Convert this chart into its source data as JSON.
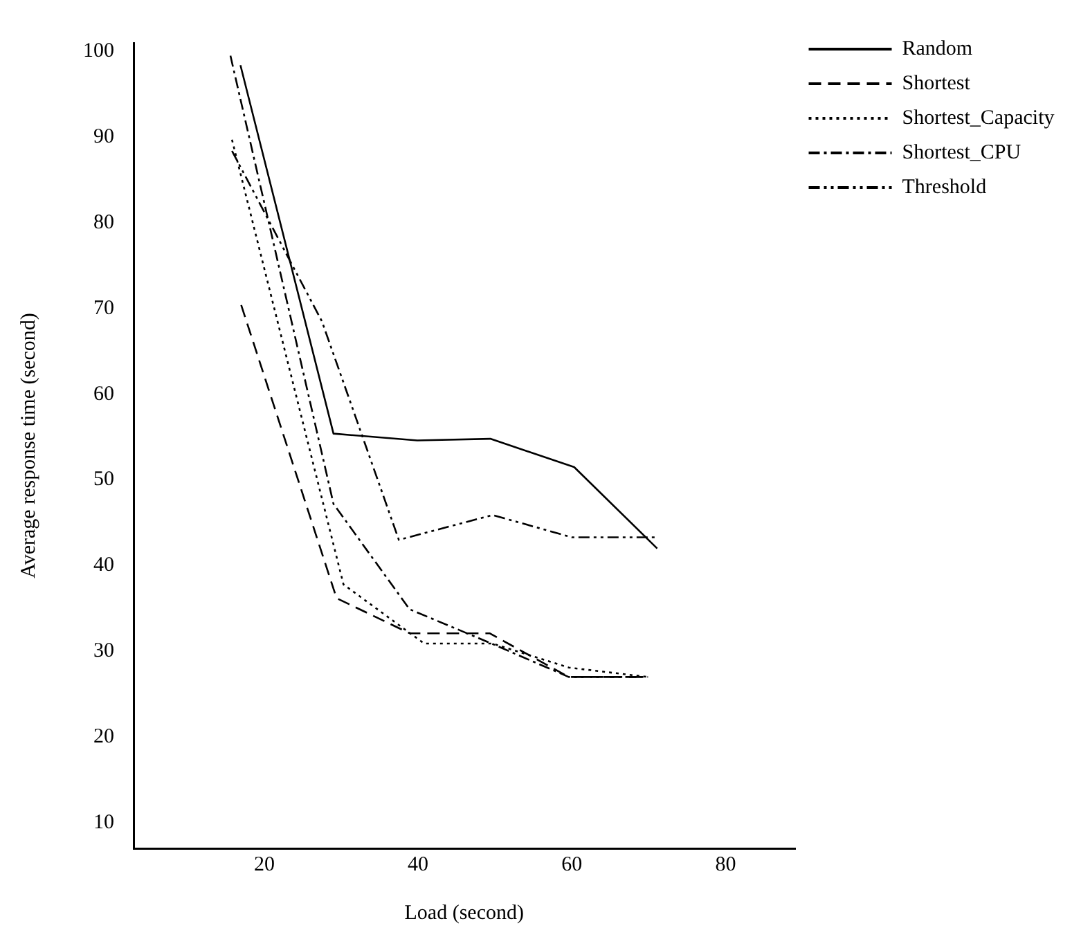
{
  "chart_data": {
    "type": "line",
    "xlabel": "Load (second)",
    "ylabel": "Average response time (second)",
    "xlim": [
      3,
      89
    ],
    "xticks": [
      20,
      40,
      60,
      80
    ],
    "ylim": [
      7,
      101
    ],
    "yticks": [
      10,
      20,
      30,
      40,
      50,
      60,
      70,
      80,
      90,
      100
    ],
    "grid": false,
    "legend": "top right",
    "marker": "none",
    "series": [
      {
        "name": "Random",
        "color": "#000000",
        "line_style": "solid",
        "x": [
          16.9,
          29.0,
          39.9,
          49.4,
          60.3,
          71.1
        ],
        "values": [
          98.4,
          55.4,
          54.6,
          54.8,
          51.5,
          42.0
        ]
      },
      {
        "name": "Shortest",
        "color": "#000000",
        "line_style": "dashed",
        "x": [
          17.0,
          29.4,
          38.9,
          49.3,
          59.6,
          69.9
        ],
        "values": [
          70.4,
          36.2,
          32.1,
          32.1,
          27.0,
          27.0
        ]
      },
      {
        "name": "Shortest_Capacity",
        "color": "#000000",
        "line_style": "dotted",
        "x": [
          15.8,
          30.3,
          40.8,
          49.7,
          59.6,
          69.9
        ],
        "values": [
          89.7,
          37.8,
          30.9,
          30.9,
          28.1,
          27.0
        ]
      },
      {
        "name": "Shortest_CPU",
        "color": "#000000",
        "line_style": "dashdot",
        "x": [
          15.6,
          29.0,
          38.9,
          49.3,
          59.6,
          69.9
        ],
        "values": [
          99.5,
          47.2,
          34.9,
          31.0,
          27.0,
          27.0
        ]
      },
      {
        "name": "Threshold",
        "color": "#000000",
        "line_style": "dashdotdot",
        "x": [
          15.8,
          27.5,
          37.5,
          49.7,
          60.0,
          70.8
        ],
        "values": [
          88.4,
          68.5,
          43.0,
          45.9,
          43.3,
          43.3
        ]
      }
    ]
  }
}
